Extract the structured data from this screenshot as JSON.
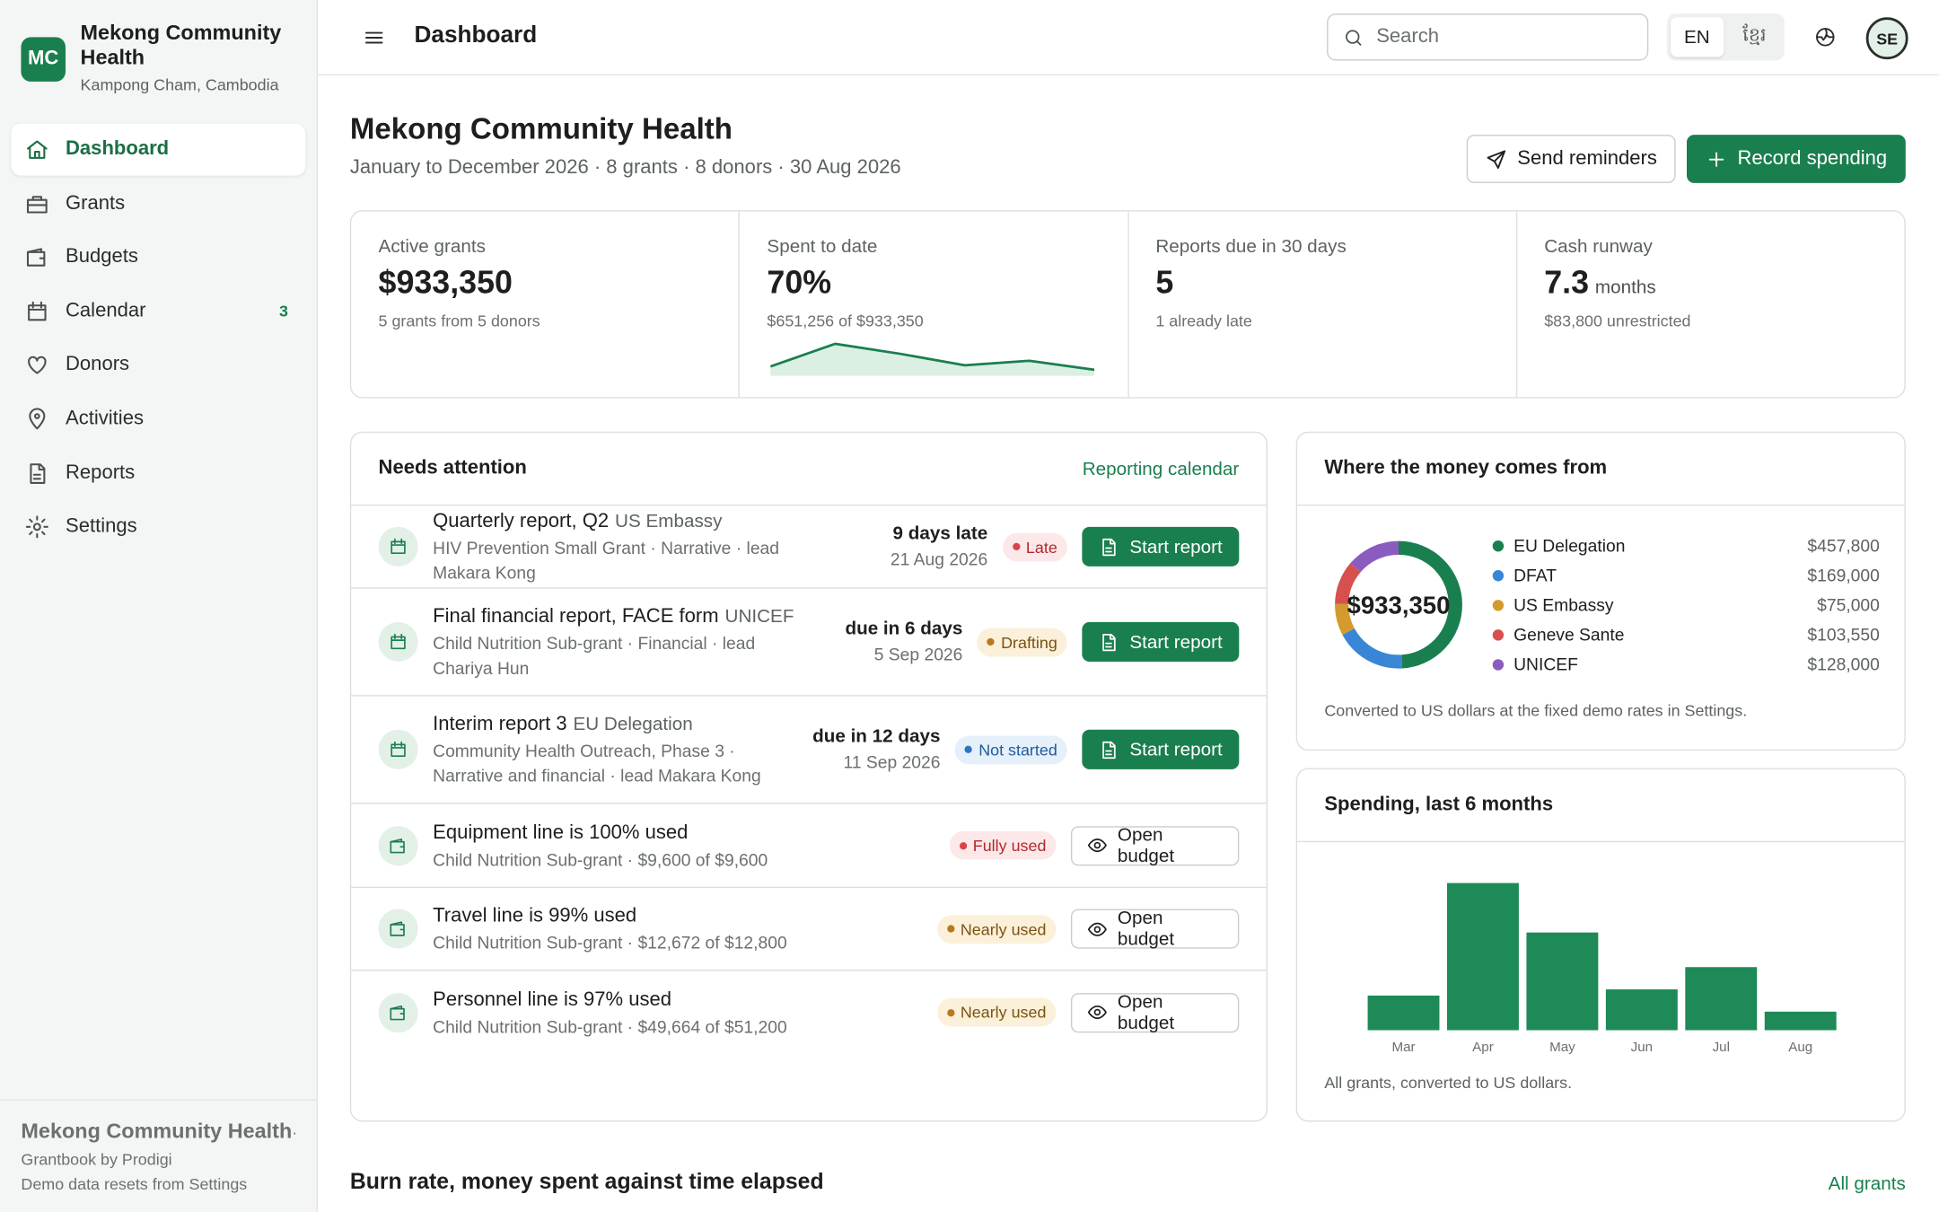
{
  "sidebar": {
    "logo": "MC",
    "org": "Mekong Community Health",
    "location": "Kampong Cham, Cambodia",
    "nav": [
      {
        "label": "Dashboard"
      },
      {
        "label": "Grants"
      },
      {
        "label": "Budgets"
      },
      {
        "label": "Calendar",
        "badge": 3
      },
      {
        "label": "Donors"
      },
      {
        "label": "Activities"
      },
      {
        "label": "Reports"
      },
      {
        "label": "Settings"
      }
    ],
    "footer": {
      "org": "Mekong Community Health",
      "product": "· Grantbook by Prodigi",
      "note": "Demo data resets from Settings"
    }
  },
  "header": {
    "title": "Dashboard",
    "search": "Search",
    "languages": [
      "EN",
      "ខ្មែរ"
    ],
    "avatar": "SE"
  },
  "page": {
    "title": "Mekong Community Health",
    "subtitle": "January to December 2026 · 8 grants · 8 donors · 30 Aug 2026",
    "actions": [
      "Send reminders",
      "Record spending"
    ]
  },
  "kpis": [
    {
      "label": "Active grants",
      "value": "$933,350",
      "note": "5 grants from 5 donors"
    },
    {
      "label": "Spent to date",
      "value": "70%",
      "note": "$651,256 of $933,350"
    },
    {
      "label": "Reports due in 30 days",
      "value": "5",
      "note": "1 already late"
    },
    {
      "label": "Cash runway",
      "value": "7.3",
      "unit": "months",
      "note": "$83,800 unrestricted"
    }
  ],
  "attention": {
    "title": "Needs attention",
    "link": "Reporting calendar",
    "items": [
      {
        "title": "Quarterly report, Q2",
        "source": "US Embassy",
        "detail": "HIV Prevention Small Grant · Narrative · lead Makara Kong",
        "due": "9 days late",
        "date": "21 Aug 2026",
        "status": "Late",
        "status_color": "#d9434a",
        "status_bg": "#fce8e8",
        "action": "Start report"
      },
      {
        "title": "Final financial report, FACE form",
        "source": "UNICEF",
        "detail": "Child Nutrition Sub-grant · Financial · lead Chariya Hun",
        "due": "due in 6 days",
        "date": "5 Sep 2026",
        "status": "Drafting",
        "status_color": "#b7791f",
        "status_bg": "#fbf0d9",
        "action": "Start report"
      },
      {
        "title": "Interim report 3",
        "source": "EU Delegation",
        "detail": "Community Health Outreach, Phase 3 · Narrative and financial · lead Makara Kong",
        "due": "due in 12 days",
        "date": "11 Sep 2026",
        "status": "Not started",
        "status_color": "#2f74c0",
        "status_bg": "#e5f0fb",
        "action": "Start report"
      },
      {
        "title": "Equipment line is 100% used",
        "detail": "Child Nutrition Sub-grant · $9,600 of $9,600",
        "status": "Fully used",
        "status_color": "#d9434a",
        "status_bg": "#fce8e8",
        "action": "Open budget"
      },
      {
        "title": "Travel line is 99% used",
        "detail": "Child Nutrition Sub-grant · $12,672 of $12,800",
        "status": "Nearly used",
        "status_color": "#b7791f",
        "status_bg": "#fbf0d9",
        "action": "Open budget"
      },
      {
        "title": "Personnel line is 97% used",
        "detail": "Child Nutrition Sub-grant · $49,664 of $51,200",
        "status": "Nearly used",
        "status_color": "#b7791f",
        "status_bg": "#fbf0d9",
        "action": "Open budget"
      }
    ]
  },
  "chart_data": [
    {
      "type": "donut",
      "title": "Where the money comes from",
      "center_label": "$933,350",
      "categories": [
        "EU Delegation",
        "DFAT",
        "US Embassy",
        "Geneve Sante",
        "UNICEF"
      ],
      "values": [
        457800,
        169000,
        75000,
        103550,
        128000
      ],
      "value_labels": [
        "$457,800",
        "$169,000",
        "$75,000",
        "$103,550",
        "$128,000"
      ],
      "colors": [
        "#1a7f4e",
        "#3a86d6",
        "#d49a2e",
        "#d8504d",
        "#8a5cc0"
      ],
      "note": "Converted to US dollars at the fixed demo rates in Settings."
    },
    {
      "type": "bar",
      "title": "Spending, last 6 months",
      "categories": [
        "Mar",
        "Apr",
        "May",
        "Jun",
        "Jul",
        "Aug"
      ],
      "values": [
        28000,
        119000,
        79000,
        33000,
        51000,
        15000
      ],
      "color": "#1e8a57",
      "note": "All grants, converted to US dollars."
    }
  ],
  "bottom": {
    "title": "Burn rate, money spent against time elapsed",
    "link": "All grants"
  }
}
